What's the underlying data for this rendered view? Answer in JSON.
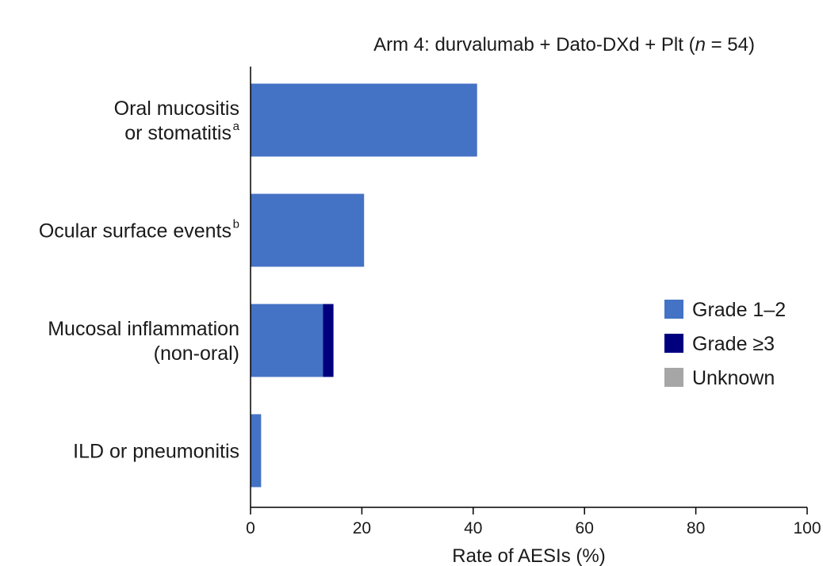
{
  "chart_data": {
    "type": "bar",
    "orientation": "horizontal",
    "stacked": true,
    "title_parts": [
      "Arm 4: durvalumab + Dato-DXd + Plt (",
      "n",
      " = 54)"
    ],
    "xlabel": "Rate of AESIs (%)",
    "ylabel": "",
    "xlim": [
      0,
      100
    ],
    "xticks": [
      "0",
      "20",
      "40",
      "60",
      "80",
      "100"
    ],
    "grid": false,
    "legend_position": "right",
    "categories": [
      {
        "lines": [
          "Oral mucositis",
          "or stomatitis"
        ],
        "sup": "a"
      },
      {
        "lines": [
          "Ocular surface events"
        ],
        "sup": "b"
      },
      {
        "lines": [
          "Mucosal inflammation",
          "(non-oral)"
        ],
        "sup": ""
      },
      {
        "lines": [
          "ILD or pneumonitis"
        ],
        "sup": ""
      }
    ],
    "series": [
      {
        "name": "Grade 1–2",
        "color": "#4472c4",
        "values": [
          40.7,
          20.4,
          13.0,
          1.9
        ]
      },
      {
        "name": "Grade ≥3",
        "color": "#00007f",
        "values": [
          0,
          0,
          1.9,
          0
        ]
      },
      {
        "name": "Unknown",
        "color": "#a6a6a6",
        "values": [
          0,
          0,
          0,
          0
        ]
      }
    ]
  }
}
